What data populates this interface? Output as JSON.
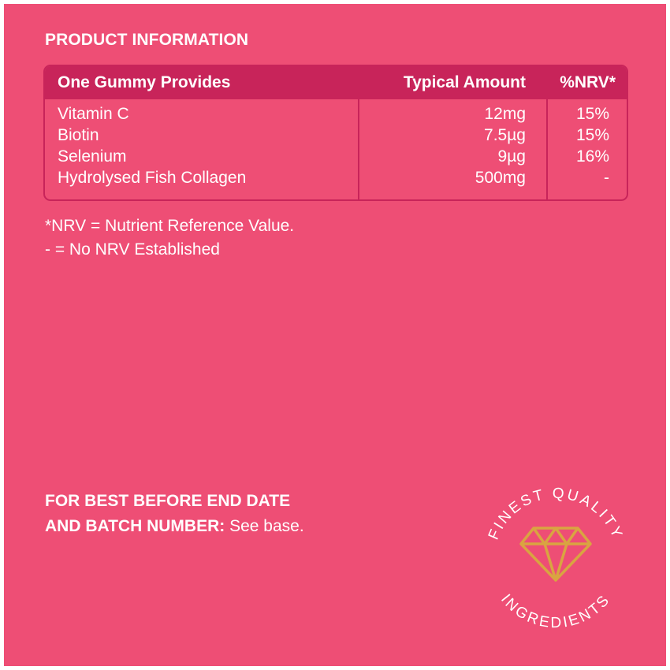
{
  "title": "PRODUCT INFORMATION",
  "table": {
    "headers": [
      "One Gummy Provides",
      "Typical Amount",
      "%NRV*"
    ],
    "rows": [
      {
        "nutrient": "Vitamin C",
        "amount": "12mg",
        "nrv": "15%"
      },
      {
        "nutrient": "Biotin",
        "amount": "7.5µg",
        "nrv": "15%"
      },
      {
        "nutrient": "Selenium",
        "amount": "9µg",
        "nrv": "16%"
      },
      {
        "nutrient": "Hydrolysed Fish Collagen",
        "amount": "500mg",
        "nrv": "-"
      }
    ]
  },
  "notes": [
    "*NRV = Nutrient Reference Value.",
    "- = No NRV Established"
  ],
  "best_before": {
    "line1": "FOR BEST BEFORE END DATE",
    "line2_bold": "AND BATCH NUMBER:",
    "line2_rest": " See base."
  },
  "badge": {
    "top_text": "FINEST QUALITY",
    "bottom_text": "INGREDIENTS",
    "icon": "diamond-icon"
  },
  "colors": {
    "background": "#ee4e75",
    "header": "#c8245a",
    "text": "#ffffff",
    "diamond": "#d9a441"
  }
}
